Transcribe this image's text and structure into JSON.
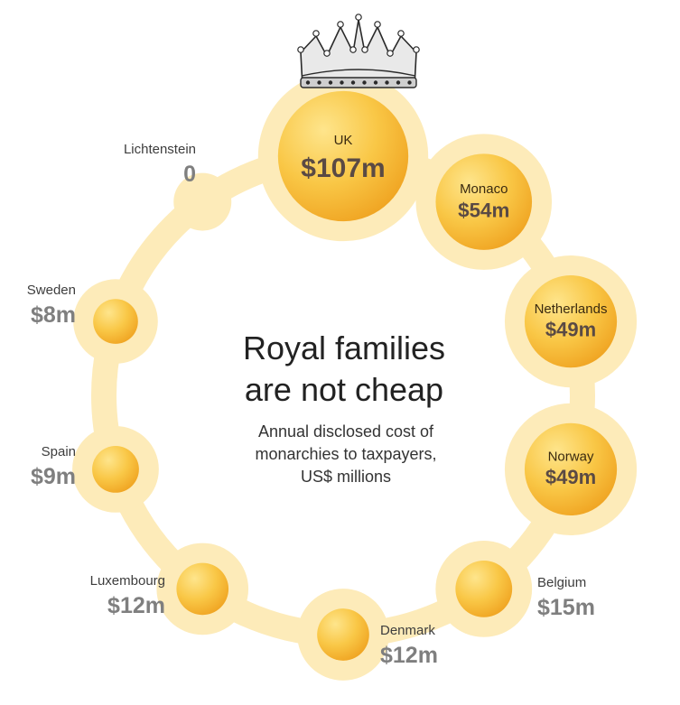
{
  "chart_data": {
    "type": "bubble",
    "title": "Royal families are not cheap",
    "title_lines": [
      "Royal families",
      "are not cheap"
    ],
    "subtitle": "Annual disclosed cost of monarchies to taxpayers, US$ millions",
    "subtitle_lines": [
      "Annual disclosed cost of",
      "monarchies to taxpayers,",
      "US$ millions"
    ],
    "unit": "US$ millions",
    "categories": [
      "UK",
      "Monaco",
      "Netherlands",
      "Norway",
      "Belgium",
      "Denmark",
      "Luxembourg",
      "Spain",
      "Sweden",
      "Lichtenstein"
    ],
    "values": [
      107,
      54,
      49,
      49,
      15,
      12,
      12,
      9,
      8,
      0
    ],
    "value_labels": [
      "$107m",
      "$54m",
      "$49m",
      "$49m",
      "$15m",
      "$12m",
      "$12m",
      "$9m",
      "$8m",
      "0"
    ],
    "highlight": "UK",
    "colors": {
      "bubble_light": "#fde487",
      "bubble_dark": "#f3ac25",
      "ring": "#fdebb9",
      "outside_value": "#7f7f7f",
      "inside_value": "#5a4a44"
    },
    "icons": [
      "crown-icon"
    ]
  }
}
